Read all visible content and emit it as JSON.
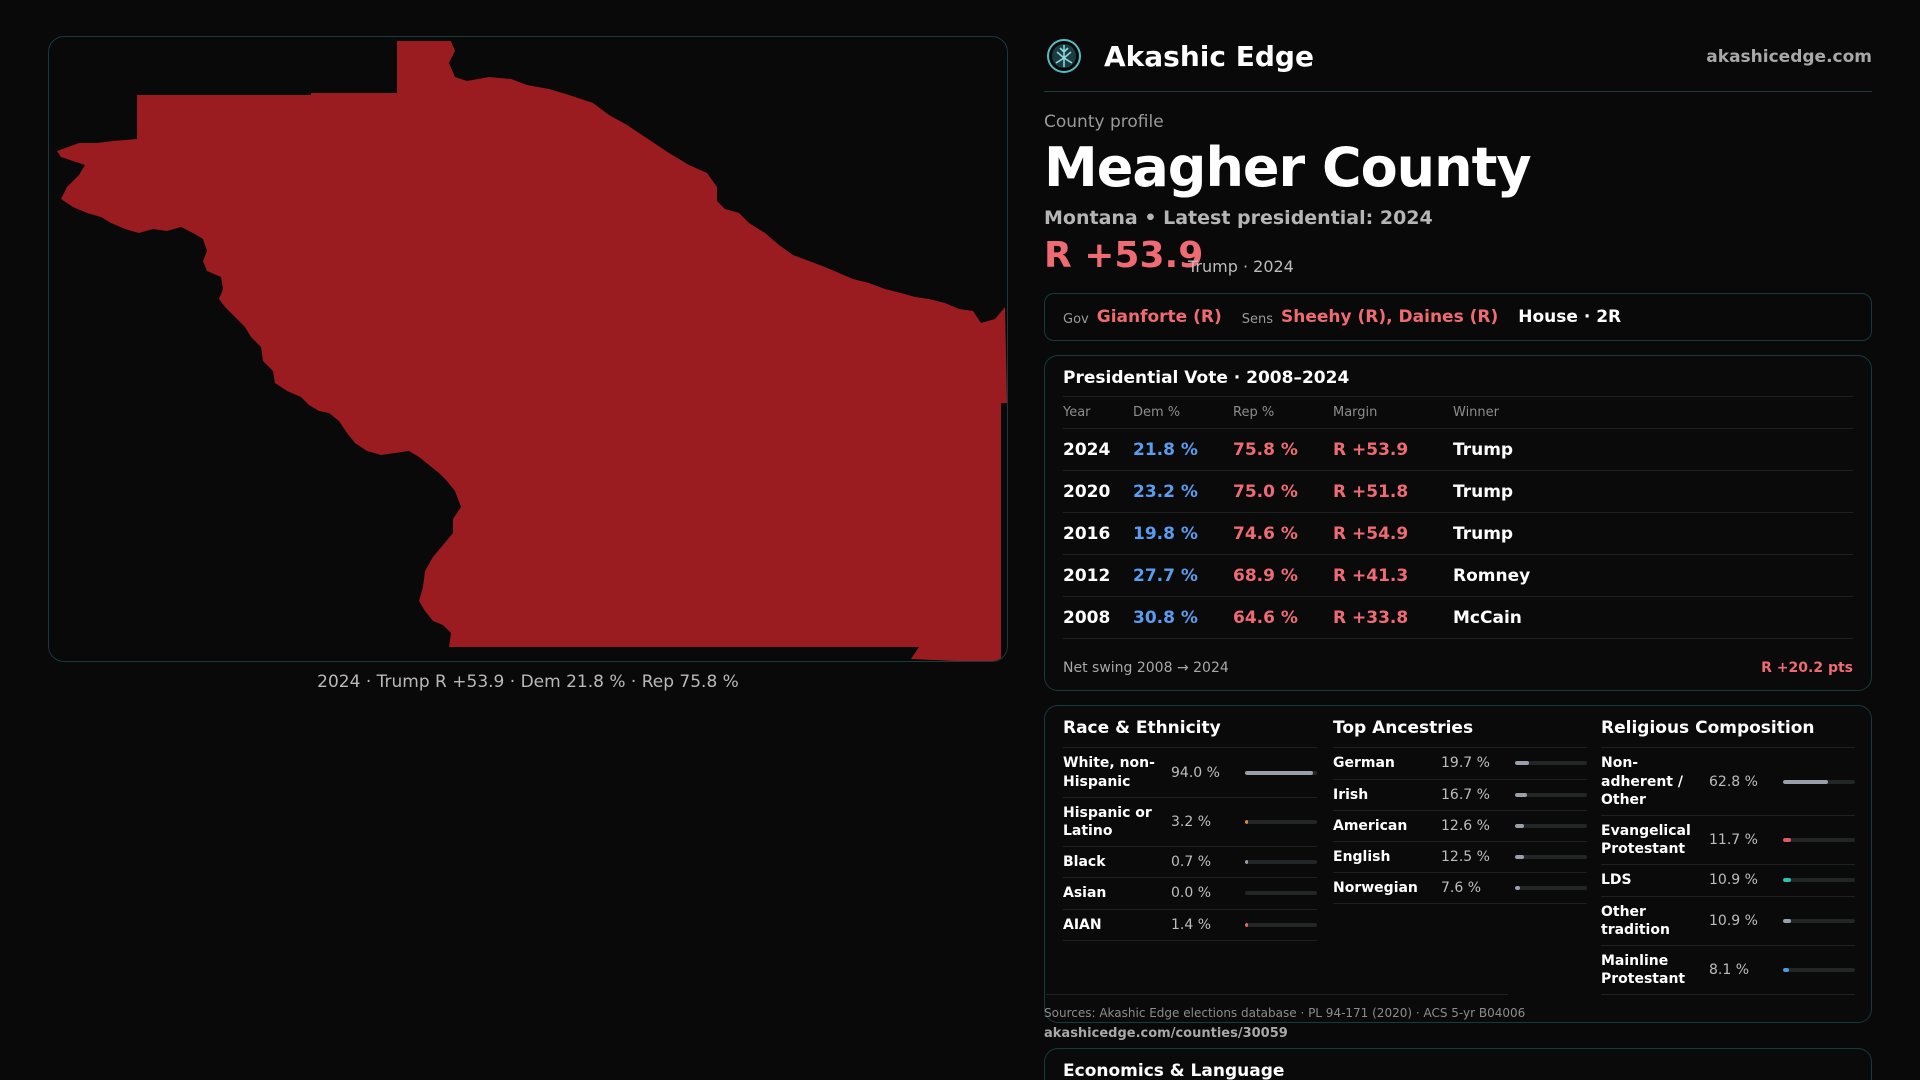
{
  "map": {
    "caption": "2024 · Trump R +53.9 · Dem 21.8 % · Rep 75.8 %",
    "fill_color": "#9b1c20"
  },
  "brand": {
    "name": "Akashic Edge",
    "url": "akashicedge.com",
    "logo_icon": "tree-of-life-icon"
  },
  "profile": {
    "eyebrow": "County profile",
    "title": "Meagher County",
    "subtitle": "Montana • Latest presidential: 2024",
    "margin": "R +53.9",
    "margin_note": "Trump · 2024"
  },
  "officials": {
    "gov_tag": "Gov",
    "gov": "Gianforte (R)",
    "sens_tag": "Sens",
    "sens": "Sheehy (R), Daines (R)",
    "house": "House · 2R"
  },
  "presidential": {
    "title": "Presidential Vote · 2008–2024",
    "headers": [
      "Year",
      "Dem %",
      "Rep %",
      "Margin",
      "Winner"
    ],
    "rows": [
      {
        "year": "2024",
        "dem": "21.8 %",
        "rep": "75.8 %",
        "margin": "R +53.9",
        "winner": "Trump"
      },
      {
        "year": "2020",
        "dem": "23.2 %",
        "rep": "75.0 %",
        "margin": "R +51.8",
        "winner": "Trump"
      },
      {
        "year": "2016",
        "dem": "19.8 %",
        "rep": "74.6 %",
        "margin": "R +54.9",
        "winner": "Trump"
      },
      {
        "year": "2012",
        "dem": "27.7 %",
        "rep": "68.9 %",
        "margin": "R +41.3",
        "winner": "Romney"
      },
      {
        "year": "2008",
        "dem": "30.8 %",
        "rep": "64.6 %",
        "margin": "R +33.8",
        "winner": "McCain"
      }
    ],
    "swing_label": "Net swing 2008 → 2024",
    "swing_value": "R +20.2 pts"
  },
  "race": {
    "title": "Race & Ethnicity",
    "items": [
      {
        "label": "White, non-Hispanic",
        "pct": "94.0 %",
        "fraction": 0.94,
        "color": "#9aa0aa"
      },
      {
        "label": "Hispanic or Latino",
        "pct": "3.2 %",
        "fraction": 0.032,
        "color": "#e08a3a"
      },
      {
        "label": "Black",
        "pct": "0.7 %",
        "fraction": 0.007,
        "color": "#9aa0aa"
      },
      {
        "label": "Asian",
        "pct": "0.0 %",
        "fraction": 0.0,
        "color": "#9aa0aa"
      },
      {
        "label": "AIAN",
        "pct": "1.4 %",
        "fraction": 0.014,
        "color": "#e06a5a"
      }
    ]
  },
  "ancestry": {
    "title": "Top Ancestries",
    "items": [
      {
        "label": "German",
        "pct": "19.7 %",
        "fraction": 0.197,
        "color": "#9aa0aa"
      },
      {
        "label": "Irish",
        "pct": "16.7 %",
        "fraction": 0.167,
        "color": "#9aa0aa"
      },
      {
        "label": "American",
        "pct": "12.6 %",
        "fraction": 0.126,
        "color": "#9aa0aa"
      },
      {
        "label": "English",
        "pct": "12.5 %",
        "fraction": 0.125,
        "color": "#9aa0aa"
      },
      {
        "label": "Norwegian",
        "pct": "7.6 %",
        "fraction": 0.076,
        "color": "#9aa0aa"
      }
    ]
  },
  "religion": {
    "title": "Religious Composition",
    "items": [
      {
        "label": "Non-adherent / Other",
        "pct": "62.8 %",
        "fraction": 0.628,
        "color": "#9aa0aa"
      },
      {
        "label": "Evangelical Protestant",
        "pct": "11.7 %",
        "fraction": 0.117,
        "color": "#e25a62"
      },
      {
        "label": "LDS",
        "pct": "10.9 %",
        "fraction": 0.109,
        "color": "#2fc0b0"
      },
      {
        "label": "Other tradition",
        "pct": "10.9 %",
        "fraction": 0.109,
        "color": "#9aa0aa"
      },
      {
        "label": "Mainline Protestant",
        "pct": "8.1 %",
        "fraction": 0.081,
        "color": "#4d9ae0"
      }
    ]
  },
  "footer": {
    "sources": "Sources: Akashic Edge elections database · PL 94-171 (2020) · ACS 5-yr B04006",
    "url": "akashicedge.com/counties/30059"
  },
  "economics": {
    "title": "Economics & Language"
  }
}
